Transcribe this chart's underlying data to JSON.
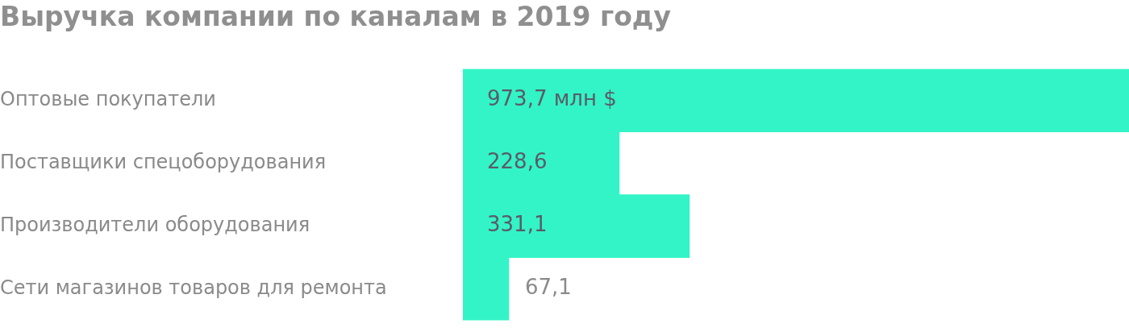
{
  "chart_data": {
    "type": "bar",
    "title": "Выручка компании по каналам в 2019 году",
    "orientation": "horizontal",
    "categories": [
      "Оптовые покупатели",
      "Поставщики спецоборудования",
      "Производители оборудования",
      "Сети магазинов товаров для ремонта"
    ],
    "values": [
      973.7,
      228.6,
      331.1,
      67.1
    ],
    "value_labels": [
      "973,7 млн $",
      "228,6",
      "331,1",
      "67,1"
    ],
    "color": "#33f4c6",
    "tick_labels": "y",
    "legend": false
  }
}
